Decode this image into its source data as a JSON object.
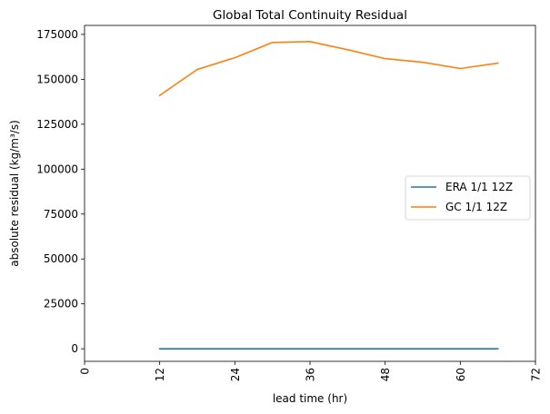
{
  "chart_data": {
    "type": "line",
    "title": "Global Total Continuity Residual",
    "xlabel": "lead time (hr)",
    "ylabel": "absolute residual (kg/m³/s)",
    "xlim": [
      0,
      72
    ],
    "ylim": [
      -7000,
      180000
    ],
    "xticks": [
      0,
      12,
      24,
      36,
      48,
      60,
      72
    ],
    "xtick_labels": [
      "0",
      "12",
      "24",
      "36",
      "48",
      "60",
      "72"
    ],
    "yticks": [
      0,
      25000,
      50000,
      75000,
      100000,
      125000,
      150000,
      175000
    ],
    "ytick_labels": [
      "0",
      "25000",
      "50000",
      "75000",
      "100000",
      "125000",
      "150000",
      "175000"
    ],
    "grid": false,
    "legend_position": "center-right",
    "series": [
      {
        "name": "ERA 1/1 12Z",
        "color": "#1f77b4",
        "x": [
          12,
          18,
          24,
          30,
          36,
          42,
          48,
          54,
          60,
          66
        ],
        "y": [
          0,
          0,
          0,
          0,
          0,
          0,
          0,
          0,
          0,
          0
        ]
      },
      {
        "name": "GC 1/1 12Z",
        "color": "#ff7f0e",
        "x": [
          12,
          18,
          24,
          30,
          36,
          42,
          48,
          54,
          60,
          66
        ],
        "y": [
          141000,
          155500,
          162000,
          170500,
          171000,
          166500,
          161500,
          159500,
          156000,
          159000
        ]
      }
    ]
  }
}
